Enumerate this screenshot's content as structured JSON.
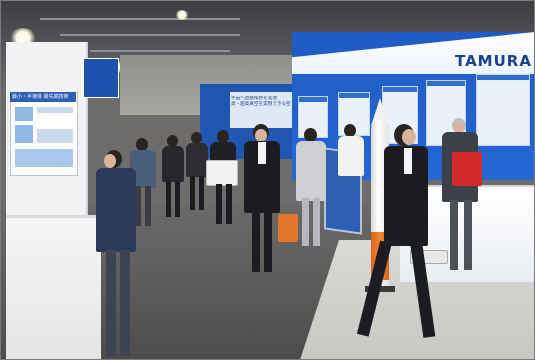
{
  "photo": {
    "alt_text": "",
    "signage": {
      "brand_logo": "TAMURA",
      "left_poster_heading": "最小・半導体 最先端技術",
      "center_panel_heading": "宇宙へ直接排熱を実現",
      "center_panel_subheading": "高・超高真空を実現できる空間"
    },
    "colors": {
      "booth_blue": "#2667d4",
      "rocket_orange": "#f28a2c",
      "gift_bag_orange": "#e3762b",
      "backpack_red": "#d12b2b",
      "suit_black": "#1c1c22"
    }
  }
}
